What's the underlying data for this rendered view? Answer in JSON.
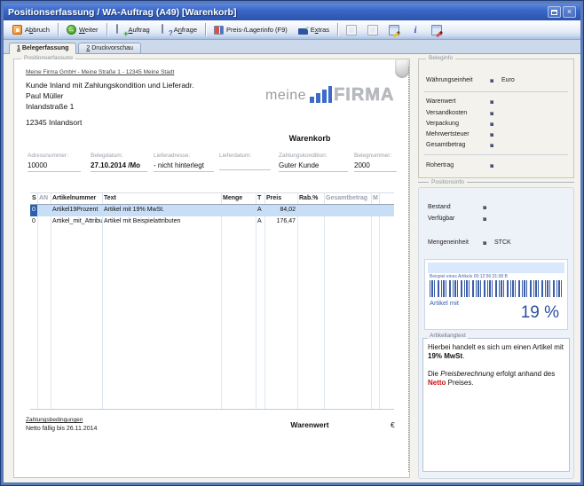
{
  "window": {
    "title": "Positionserfassung / WA-Auftrag (A49) [Warenkorb]"
  },
  "icons": {
    "close": "×",
    "next_arrow": "→",
    "plus": "+",
    "question": "?",
    "info": "i"
  },
  "toolbar": {
    "buttons": [
      {
        "label": "A&bbruch"
      },
      {
        "label": "&Weiter"
      },
      {
        "label": "&Auftrag"
      },
      {
        "label": "A&nfrage"
      },
      {
        "label": "Preis-/Lagerinfo (F9)"
      },
      {
        "label": "E&xtras"
      }
    ]
  },
  "tabs": [
    {
      "label": "&1 Belegerfassung"
    },
    {
      "label": "&2 Druckvorschau"
    }
  ],
  "main_group_title": "Positionserfassung",
  "document": {
    "sender_line": "Meine Firma GmbH - Meine Straße 1 - 12345 Meine Stadt",
    "recipient_line1": "Kunde Inland mit Zahlungskondition und Lieferadr.",
    "recipient_line2": "Paul Müller",
    "recipient_line3": "Inlandstraße 1",
    "recipient_city": "12345 Inlandsort",
    "logo_word1": "meine",
    "logo_word2": "FIRMA",
    "doc_title": "Warenkorb",
    "fields": [
      {
        "label": "Adressnummer:",
        "value": "10000"
      },
      {
        "label": "Belegdatum:",
        "value": "27.10.2014 /Mo"
      },
      {
        "label": "Lieferadresse:",
        "value": "- nicht hinterlegt"
      },
      {
        "label": "Lieferdatum:",
        "value": ""
      },
      {
        "label": "Zahlungskondition:",
        "value": "Guter Kunde"
      },
      {
        "label": "Belegnummer:",
        "value": "2000"
      }
    ],
    "table": {
      "columns": [
        "S",
        "AN",
        "Artikelnummer",
        "Text",
        "Menge",
        "T",
        "Preis",
        "Rab.%",
        "Gesamtbetrag",
        "M"
      ],
      "rows": [
        {
          "s": "0",
          "an": "",
          "artikelnummer": "Artikel19Prozent",
          "text": "Artikel mit 19% MwSt.",
          "menge": "",
          "t": "A",
          "preis": "84,02",
          "rab": "",
          "gesamtbetrag": "",
          "m": ""
        },
        {
          "s": "0",
          "an": "",
          "artikelnummer": "Artikel_mit_Attribu",
          "text": "Artikel mit Beispielattributen",
          "menge": "",
          "t": "A",
          "preis": "176,47",
          "rab": "",
          "gesamtbetrag": "",
          "m": ""
        }
      ]
    },
    "footer": {
      "terms_title": "Zahlungsbedingungen",
      "terms_text": "Netto fällig bis 26.11.2014",
      "total_label": "Warenwert",
      "currency": "€"
    }
  },
  "beleginfo": {
    "title": "Beleginfo",
    "rows": [
      {
        "label": "Währungseinheit",
        "value": "Euro"
      },
      {
        "label": "Warenwert",
        "value": ""
      },
      {
        "label": "Versandkosten",
        "value": ""
      },
      {
        "label": "Verpackung",
        "value": ""
      },
      {
        "label": "Mehrwertsteuer",
        "value": ""
      },
      {
        "label": "Gesamtbetrag",
        "value": ""
      },
      {
        "label": "Rohertrag",
        "value": ""
      }
    ]
  },
  "positionsinfo": {
    "title": "Positionsinfo",
    "rows": [
      {
        "label": "Bestand",
        "value": ""
      },
      {
        "label": "Verfügbar",
        "value": ""
      },
      {
        "label": "Mengeneinheit",
        "value": "STCK"
      }
    ],
    "image_caption": "Beispiel eines Artikels 00:12:56:31:98 B",
    "image_name": "Artikel mit",
    "image_big": "19 %",
    "langtext_label": "Artikellangtext",
    "langtext": {
      "p1a": "Hierbei handelt es sich um einen Artikel mit ",
      "p1b": "19% MwSt",
      "p1c": ".",
      "p2a": "Die ",
      "p2b": "Preisberechnung",
      "p2c": " erfolgt anhand ",
      "p2d": "des ",
      "p2e": "Netto",
      "p2f": " Preises."
    }
  }
}
